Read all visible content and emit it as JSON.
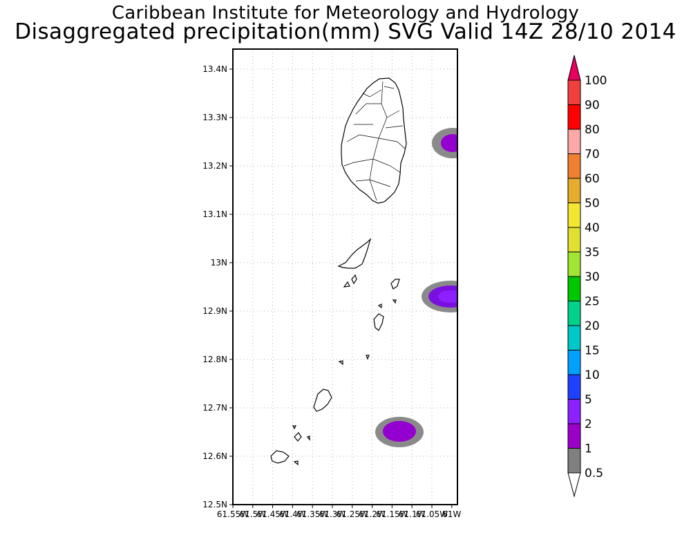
{
  "header": {
    "title": "Caribbean Institute for Meteorology and Hydrology",
    "subtitle": "Disaggregated precipitation(mm) SVG Valid 14Z 28/10 2014"
  },
  "map": {
    "lat_ticks": [
      "13.4N",
      "13.3N",
      "13.2N",
      "13.1N",
      "13N",
      "12.9N",
      "12.8N",
      "12.7N",
      "12.6N",
      "12.5N"
    ],
    "lon_ticks": [
      "61.55W",
      "61.5W",
      "61.45W",
      "61.4W",
      "61.35W",
      "61.3W",
      "61.25W",
      "61.2W",
      "61.15W",
      "61.1W",
      "61.05W",
      "61W"
    ],
    "lat_range": [
      12.5,
      13.45
    ],
    "lon_range": [
      -61.55,
      -61.0
    ],
    "grid": true,
    "precip_areas": [
      {
        "lon": -61.015,
        "lat": 13.25,
        "level": "1-2 mm"
      },
      {
        "lon": -61.02,
        "lat": 12.93,
        "level": "2-5 mm"
      },
      {
        "lon": -61.14,
        "lat": 12.65,
        "level": "1-2 mm"
      }
    ]
  },
  "legend": {
    "levels": [
      "100",
      "90",
      "80",
      "70",
      "60",
      "50",
      "40",
      "35",
      "30",
      "25",
      "20",
      "15",
      "10",
      "5",
      "2",
      "1",
      "0.5"
    ],
    "colors": [
      "#e8005d",
      "#f0403d",
      "#ff0000",
      "#ffa8a8",
      "#f08030",
      "#e6ac2c",
      "#f2e630",
      "#e0e030",
      "#a0e632",
      "#00c800",
      "#00d28c",
      "#00c8c8",
      "#00a0ff",
      "#2040ff",
      "#8c20ff",
      "#9b00c8",
      "#808080"
    ]
  }
}
